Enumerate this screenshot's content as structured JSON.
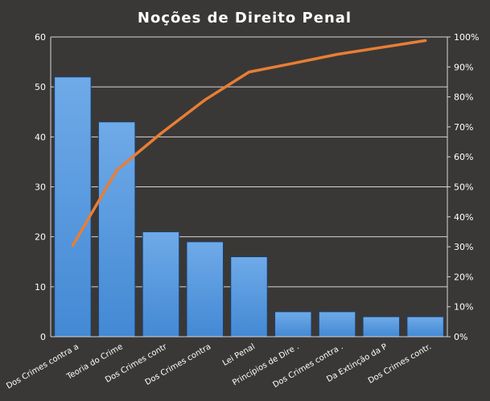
{
  "chart_data": {
    "type": "bar",
    "title": "Noções  de  Direito  Penal",
    "categories": [
      "Dos Crimes contra a",
      "Teoria do Crime",
      "Dos Crimes contr",
      "Dos Crimes contra",
      "Lei Penal",
      "Princípios de Dire .",
      "Dos Crimes contra .",
      "Da Extinção da P",
      "Dos Crimes contr."
    ],
    "series": [
      {
        "type": "bar",
        "values": [
          52,
          43,
          21,
          19,
          16,
          5,
          5,
          4,
          4
        ]
      },
      {
        "type": "line",
        "axis": "right",
        "values": [
          30.4,
          55.6,
          67.8,
          79.0,
          88.3,
          91.2,
          94.2,
          96.5,
          98.8
        ]
      }
    ],
    "ylim": [
      0,
      60
    ],
    "yticks": [
      "0",
      "10",
      "20",
      "30",
      "40",
      "50",
      "60"
    ],
    "y2lim": [
      0,
      100
    ],
    "y2ticks": [
      "0%",
      "10%",
      "20%",
      "30%",
      "40%",
      "50%",
      "60%",
      "70%",
      "80%",
      "90%",
      "100%"
    ],
    "grid": true,
    "legend": "none",
    "colors": {
      "background": "#3a3836",
      "plot_background": "#3a3836",
      "grid": "#d6d6d6",
      "bar_top": "#6faae8",
      "bar_bottom": "#4389d4",
      "bar_stroke": "#1c3f6e",
      "line": "#e87e35",
      "text": "#ffffff"
    }
  }
}
